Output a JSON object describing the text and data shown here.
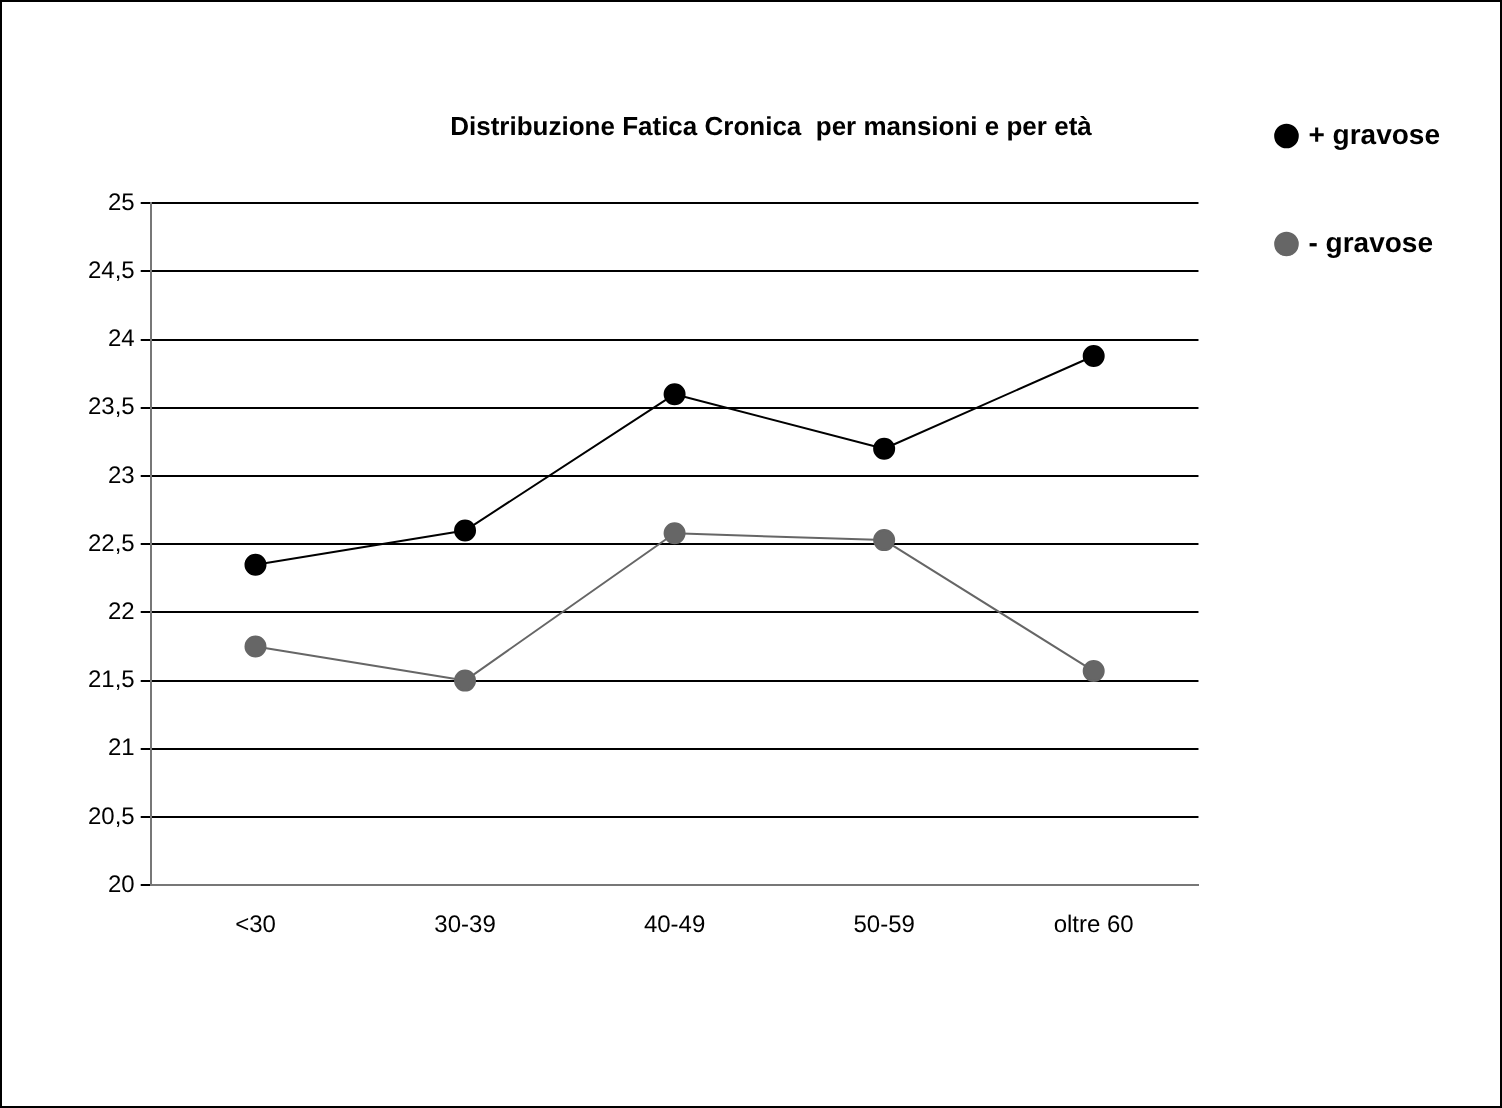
{
  "chart_data": {
    "type": "line",
    "title": "Distribuzione Fatica Cronica  per mansioni e per età",
    "categories": [
      "<30",
      "30-39",
      "40-49",
      "50-59",
      "oltre 60"
    ],
    "series": [
      {
        "name": "+ gravose",
        "color": "#000000",
        "values": [
          22.35,
          22.6,
          23.6,
          23.2,
          23.88
        ]
      },
      {
        "name": "- gravose",
        "color": "#666666",
        "values": [
          21.75,
          21.5,
          22.58,
          22.53,
          21.57
        ]
      }
    ],
    "ylim": [
      20,
      25
    ],
    "yticks": [
      {
        "value": 20,
        "label": "20"
      },
      {
        "value": 20.5,
        "label": "20,5"
      },
      {
        "value": 21,
        "label": "21"
      },
      {
        "value": 21.5,
        "label": "21,5"
      },
      {
        "value": 22,
        "label": "22"
      },
      {
        "value": 22.5,
        "label": "22,5"
      },
      {
        "value": 23,
        "label": "23"
      },
      {
        "value": 23.5,
        "label": "23,5"
      },
      {
        "value": 24,
        "label": "24"
      },
      {
        "value": 24.5,
        "label": "24,5"
      },
      {
        "value": 25,
        "label": "25"
      }
    ],
    "grid": "y",
    "legend": "top right",
    "marker": "circle",
    "line_style": "solid"
  }
}
